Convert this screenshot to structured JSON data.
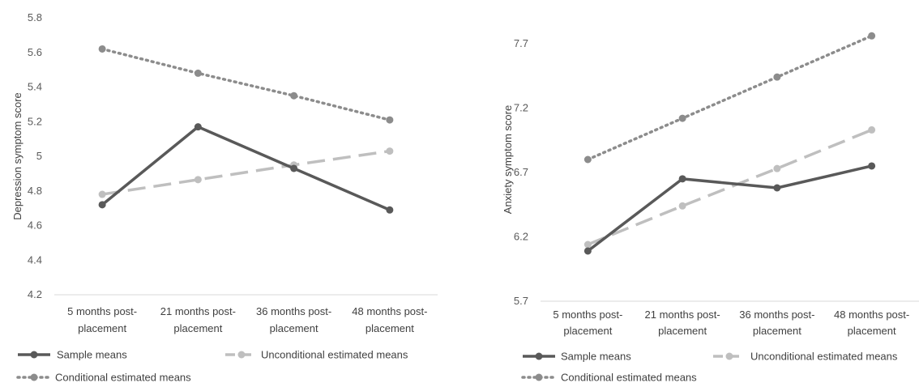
{
  "chart_data": [
    {
      "type": "line",
      "ylabel": "Depression symptom score",
      "xlabel": "",
      "ylim": [
        4.2,
        5.8
      ],
      "yticks": [
        "4.2",
        "4.4",
        "4.6",
        "4.8",
        "5",
        "5.2",
        "5.4",
        "5.6",
        "5.8"
      ],
      "categories": [
        [
          "5 months post-",
          "placement"
        ],
        [
          "21 months post-",
          "placement"
        ],
        [
          "36 months post-",
          "placement"
        ],
        [
          "48 months post-",
          "placement"
        ]
      ],
      "series": [
        {
          "name": "Sample means",
          "values": [
            4.72,
            5.17,
            4.93,
            4.69
          ],
          "color": "#595959",
          "style": "solid"
        },
        {
          "name": "Unconditional estimated means",
          "values": [
            4.78,
            4.865,
            4.95,
            5.03
          ],
          "color": "#bfbfbf",
          "style": "dashed"
        },
        {
          "name": "Conditional estimated means",
          "values": [
            5.62,
            5.48,
            5.35,
            5.21
          ],
          "color": "#8c8c8c",
          "style": "dotted"
        }
      ],
      "grid": false,
      "legend": "bottom"
    },
    {
      "type": "line",
      "ylabel": "Anxiety symptom score",
      "xlabel": "",
      "ylim": [
        5.7,
        7.9
      ],
      "yticks": [
        "5.7",
        "6.2",
        "6.7",
        "7.2",
        "7.7"
      ],
      "categories": [
        [
          "5 months post-",
          "placement"
        ],
        [
          "21 months post-",
          "placement"
        ],
        [
          "36 months post-",
          "placement"
        ],
        [
          "48 months post-",
          "placement"
        ]
      ],
      "series": [
        {
          "name": "Sample means",
          "values": [
            6.09,
            6.65,
            6.58,
            6.75
          ],
          "color": "#595959",
          "style": "solid"
        },
        {
          "name": "Unconditional estimated means",
          "values": [
            6.14,
            6.44,
            6.73,
            7.03
          ],
          "color": "#bfbfbf",
          "style": "dashed"
        },
        {
          "name": "Conditional estimated means",
          "values": [
            6.8,
            7.12,
            7.44,
            7.76
          ],
          "color": "#8c8c8c",
          "style": "dotted"
        }
      ],
      "grid": false,
      "legend": "bottom"
    }
  ]
}
